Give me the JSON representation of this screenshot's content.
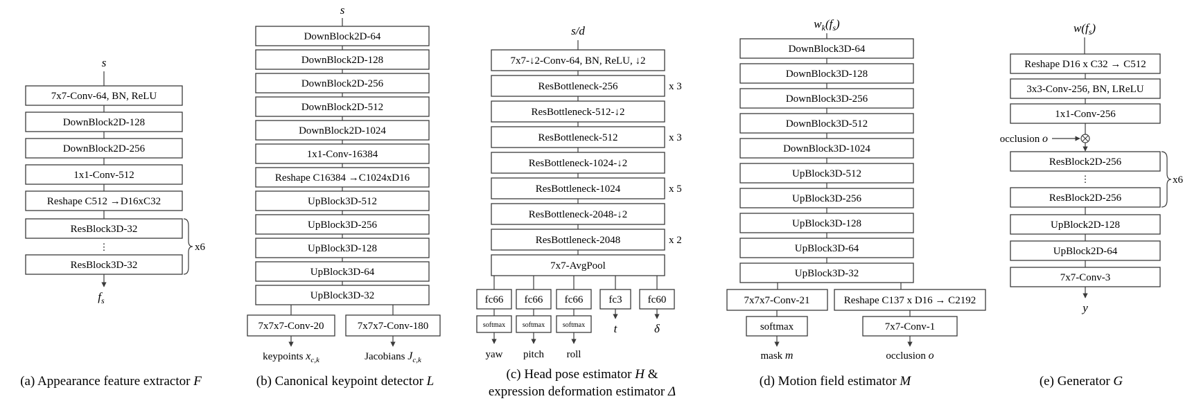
{
  "panel_a": {
    "input": "s",
    "blocks": [
      "7x7-Conv-64, BN, ReLU",
      "DownBlock2D-128",
      "DownBlock2D-256",
      "1x1-Conv-512",
      "Reshape C512 →D16xC32",
      "ResBlock3D-32",
      "⋮",
      "ResBlock3D-32"
    ],
    "repeat": "x6",
    "output": "f",
    "output_sub": "s",
    "caption": "(a) Appearance feature extractor ",
    "caption_sym": "F"
  },
  "panel_b": {
    "input": "s",
    "blocks": [
      "DownBlock2D-64",
      "DownBlock2D-128",
      "DownBlock2D-256",
      "DownBlock2D-512",
      "DownBlock2D-1024",
      "1x1-Conv-16384",
      "Reshape C16384 →C1024xD16",
      "UpBlock3D-512",
      "UpBlock3D-256",
      "UpBlock3D-128",
      "UpBlock3D-64",
      "UpBlock3D-32"
    ],
    "heads": [
      "7x7x7-Conv-20",
      "7x7x7-Conv-180"
    ],
    "out_left": "keypoints ",
    "out_left_sym": "x",
    "out_left_sub": "c,k",
    "out_right": "Jacobians ",
    "out_right_sym": "J",
    "out_right_sub": "c,k",
    "caption": "(b) Canonical keypoint detector ",
    "caption_sym": "L"
  },
  "panel_c": {
    "input": "s/d",
    "blocks": [
      "7x7-↓2-Conv-64, BN, ReLU, ↓2",
      "ResBottleneck-256",
      "ResBottleneck-512-↓2",
      "ResBottleneck-512",
      "ResBottleneck-1024-↓2",
      "ResBottleneck-1024",
      "ResBottleneck-2048-↓2",
      "ResBottleneck-2048",
      "7x7-AvgPool"
    ],
    "repeats": [
      "x 3",
      "x 3",
      "x 5",
      "x 2"
    ],
    "fc": [
      "fc66",
      "fc66",
      "fc66",
      "fc3",
      "fc60"
    ],
    "softmax": [
      "softmax",
      "softmax",
      "softmax"
    ],
    "outputs": [
      "yaw",
      "pitch",
      "roll",
      "t",
      "δ"
    ],
    "caption_line1": "(c) Head pose estimator ",
    "caption_sym1": "H",
    "caption_amp": " &",
    "caption_line2": "expression deformation estimator ",
    "caption_sym2": "Δ"
  },
  "panel_d": {
    "input": "w",
    "input_sub": "k",
    "input_arg": "(f",
    "input_arg_sub": "s",
    "input_close": ")",
    "blocks": [
      "DownBlock3D-64",
      "DownBlock3D-128",
      "DownBlock3D-256",
      "DownBlock3D-512",
      "DownBlock3D-1024",
      "UpBlock3D-512",
      "UpBlock3D-256",
      "UpBlock3D-128",
      "UpBlock3D-64",
      "UpBlock3D-32"
    ],
    "heads": [
      "7x7x7-Conv-21",
      "Reshape C137 x D16 → C2192"
    ],
    "softmax": "softmax",
    "conv": "7x7-Conv-1",
    "out_left": "mask ",
    "out_left_sym": "m",
    "out_right": "occlusion ",
    "out_right_sym": "o",
    "caption": "(d) Motion field estimator ",
    "caption_sym": "M"
  },
  "panel_e": {
    "input": "w",
    "input_arg": "(f",
    "input_arg_sub": "s",
    "input_close": ")",
    "blocks": [
      "Reshape D16 x C32 → C512",
      "3x3-Conv-256, BN, LReLU",
      "1x1-Conv-256",
      "ResBlock2D-256",
      "⋮",
      "ResBlock2D-256",
      "UpBlock2D-128",
      "UpBlock2D-64",
      "7x7-Conv-3"
    ],
    "occlusion_label": "occlusion ",
    "occlusion_sym": "o",
    "repeat": "x6",
    "output": "y",
    "caption": "(e) Generator ",
    "caption_sym": "G"
  },
  "colors": {
    "stroke": "#3a3a3a",
    "text": "#1a1a1a",
    "background": "#ffffff"
  }
}
